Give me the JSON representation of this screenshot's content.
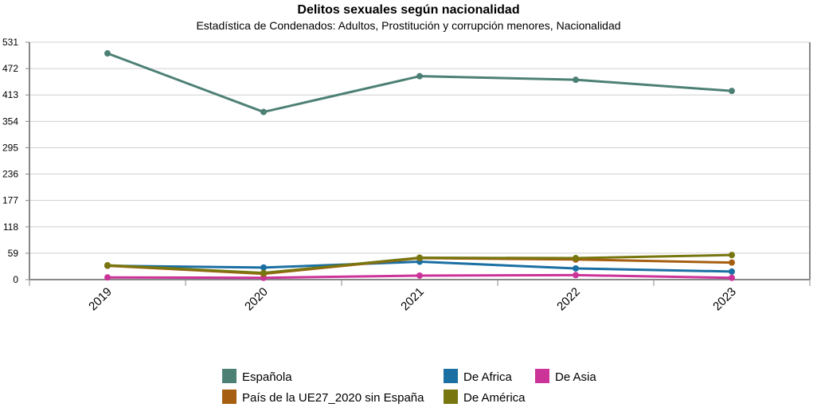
{
  "chart_data": {
    "type": "line",
    "title": "Delitos sexuales según nacionalidad",
    "subtitle": "Estadística de Condenados: Adultos, Prostitución y corrupción menores, Nacionalidad",
    "xlabel": "",
    "ylabel": "",
    "categories": [
      "2019",
      "2020",
      "2021",
      "2022",
      "2023"
    ],
    "yticks": [
      0,
      59,
      118,
      177,
      236,
      295,
      354,
      413,
      472,
      531
    ],
    "ytick_labels": [
      "0",
      "59",
      "118",
      "177",
      "236",
      "295",
      "354",
      "413",
      "472",
      "531"
    ],
    "ylim": [
      0,
      531
    ],
    "grid": true,
    "legend_position": "bottom",
    "series": [
      {
        "name": "Española",
        "color": "#4d8075",
        "values": [
          506,
          375,
          455,
          447,
          422
        ]
      },
      {
        "name": "De Africa",
        "color": "#1a6fa3",
        "values": [
          31,
          27,
          40,
          25,
          18
        ]
      },
      {
        "name": "De Asia",
        "color": "#cc3399",
        "values": [
          5,
          4,
          9,
          10,
          4
        ]
      },
      {
        "name": "País de la UE27_2020 sin España",
        "color": "#a65e10",
        "values": [
          31,
          13,
          48,
          45,
          38
        ]
      },
      {
        "name": "De América",
        "color": "#78760f",
        "values": [
          32,
          15,
          49,
          48,
          55
        ]
      }
    ]
  }
}
